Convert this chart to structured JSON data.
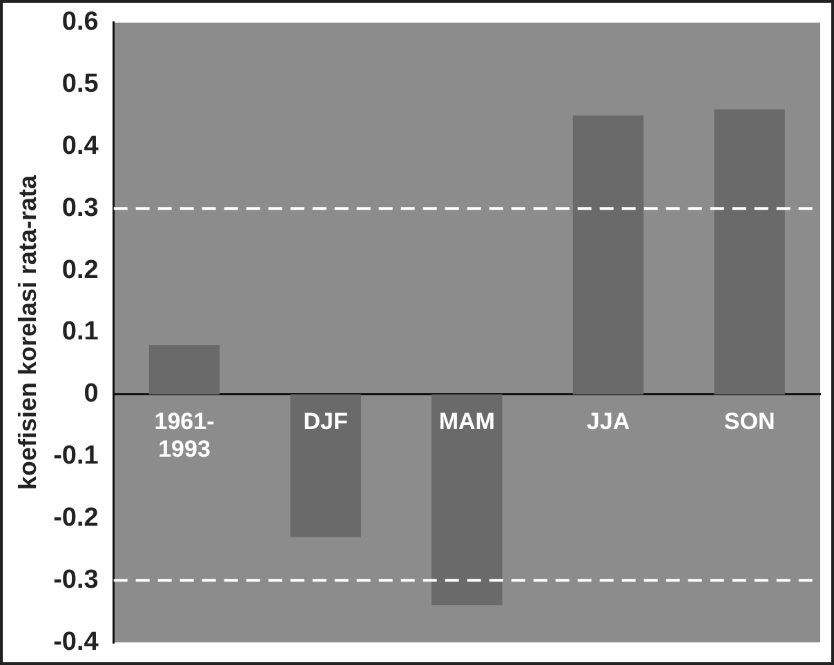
{
  "chart_data": {
    "type": "bar",
    "ylabel": "koefisien korelasi rata-rata",
    "categories": [
      "1961-1993",
      "DJF",
      "MAM",
      "JJA",
      "SON"
    ],
    "values": [
      0.08,
      -0.23,
      -0.34,
      0.45,
      0.46
    ],
    "color": "#6a6a6a",
    "ylim": [
      -0.4,
      0.6
    ],
    "yticks": [
      -0.4,
      -0.3,
      -0.2,
      -0.1,
      0,
      0.1,
      0.2,
      0.3,
      0.4,
      0.5,
      0.6
    ],
    "grid": false,
    "legend": false,
    "ref_lines": [
      {
        "axis": "y",
        "value": 0.3,
        "color": "#ffffff",
        "line_style": "dashed"
      },
      {
        "axis": "y",
        "value": -0.3,
        "color": "#ffffff",
        "line_style": "dashed"
      }
    ]
  }
}
